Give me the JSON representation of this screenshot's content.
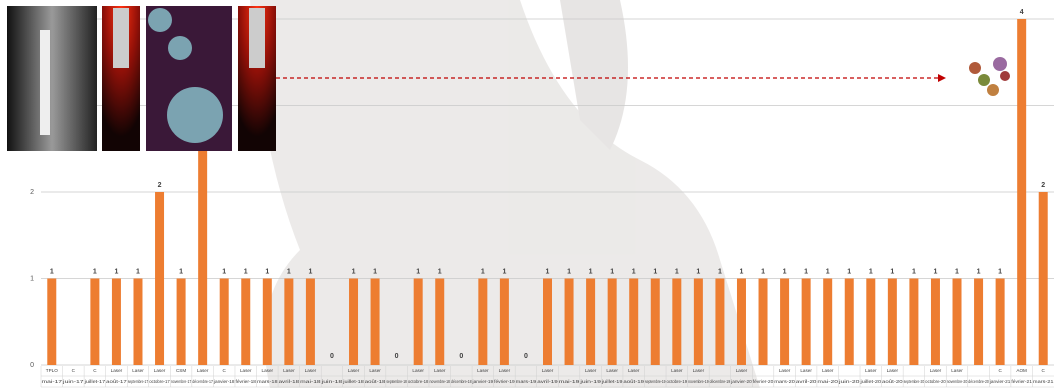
{
  "chart_data": {
    "type": "bar",
    "color": "#ed7d31",
    "grid": true,
    "ylim": [
      0,
      4
    ],
    "yticks": [
      0,
      1,
      2,
      3,
      4
    ],
    "treatments": [
      "TPLO",
      "C",
      "C",
      "Laser",
      "Laser",
      "Laser",
      "CSM",
      "Laser",
      "C",
      "Laser",
      "Laser",
      "Laser",
      "Laser",
      null,
      "Laser",
      "Laser",
      null,
      "Laser",
      "Laser",
      null,
      "Laser",
      "Laser",
      null,
      "Laser",
      null,
      "Laser",
      "Laser",
      "Laser",
      null,
      "Laser",
      "Laser",
      null,
      "Laser",
      null,
      "Laser",
      "Laser",
      "Laser",
      null,
      "Laser",
      "Laser",
      null,
      "Laser",
      "Laser",
      null,
      "C",
      "AOM",
      "C"
    ],
    "categories": [
      "mai-17",
      "juin-17",
      "juillet-17",
      "août-17",
      "septembre-17",
      "octobre-17",
      "novembre-17",
      "décembre-17",
      "janvier-18",
      "février-18",
      "mars-18",
      "avril-18",
      "mai-18",
      "juin-18",
      "juillet-18",
      "août-18",
      "septembre-18",
      "octobre-18",
      "novembre-18",
      "décembre-18",
      "janvier-19",
      "février-19",
      "mars-19",
      "avril-19",
      "mai-19",
      "juin-19",
      "juillet-19",
      "août-19",
      "septembre-19",
      "octobre-19",
      "novembre-19",
      "décembre-19",
      "janvier-20",
      "février-20",
      "mars-20",
      "avril-20",
      "mai-20",
      "juin-20",
      "juillet-20",
      "août-20",
      "septembre-20",
      "octobre-20",
      "novembre-20",
      "décembre-20",
      "janvier-21",
      "février-21",
      "mars-21"
    ],
    "values": [
      1,
      null,
      1,
      1,
      1,
      2,
      1,
      3,
      1,
      1,
      1,
      1,
      1,
      0,
      1,
      1,
      0,
      1,
      1,
      0,
      1,
      1,
      0,
      1,
      1,
      1,
      1,
      1,
      1,
      1,
      1,
      1,
      1,
      1,
      1,
      1,
      1,
      1,
      1,
      1,
      1,
      1,
      1,
      1,
      1,
      4,
      2
    ]
  }
}
